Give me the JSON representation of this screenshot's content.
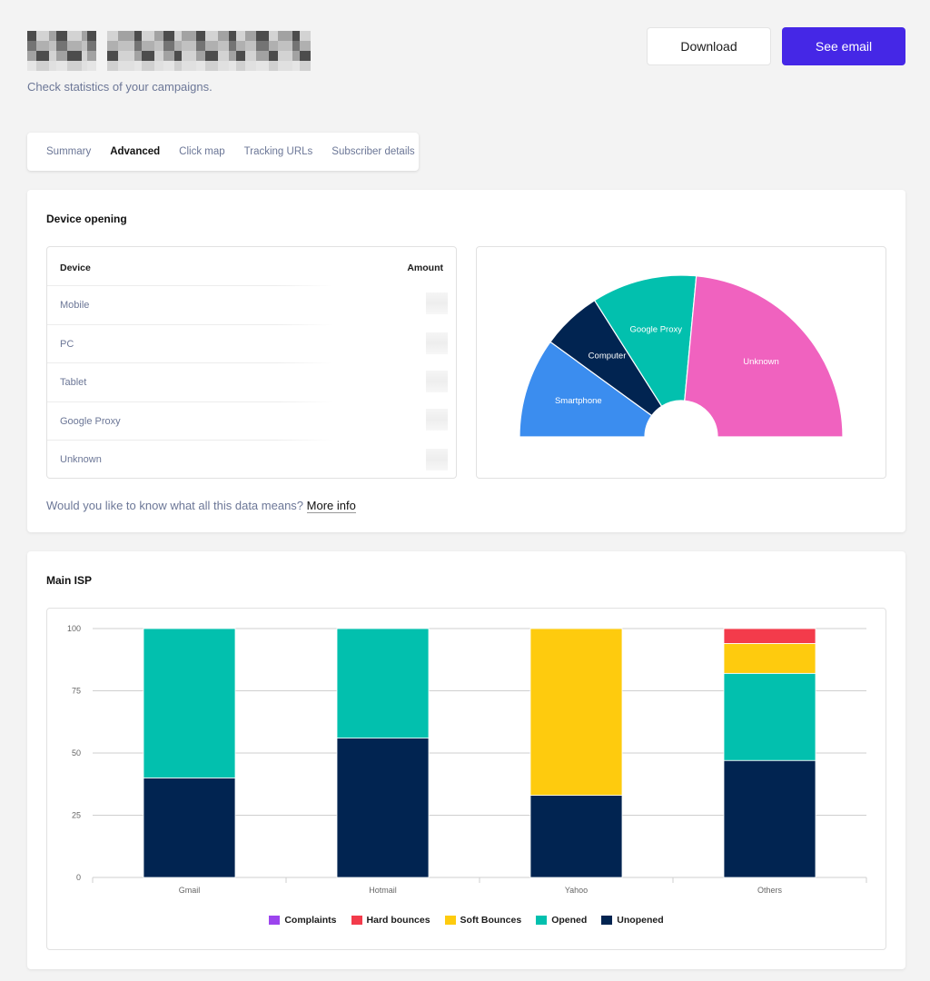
{
  "header": {
    "subtitle": "Check statistics of your campaigns.",
    "download_label": "Download",
    "see_email_label": "See email"
  },
  "tabs": [
    {
      "label": "Summary",
      "active": false
    },
    {
      "label": "Advanced",
      "active": true
    },
    {
      "label": "Click map",
      "active": false
    },
    {
      "label": "Tracking URLs",
      "active": false
    },
    {
      "label": "Subscriber details",
      "active": false
    }
  ],
  "device_opening": {
    "title": "Device opening",
    "col_device": "Device",
    "col_amount": "Amount",
    "rows": [
      "Mobile",
      "PC",
      "Tablet",
      "Google Proxy",
      "Unknown"
    ],
    "more_text": "Would you like to know what all this data means?",
    "more_link": "More info"
  },
  "main_isp": {
    "title": "Main ISP"
  },
  "chart_data": [
    {
      "type": "pie",
      "subtype": "semi-donut",
      "labels": [
        "Smartphone",
        "Computer",
        "Google Proxy",
        "Unknown"
      ],
      "values": [
        20,
        12,
        21,
        47
      ],
      "colors": [
        "#3b8def",
        "#012451",
        "#02c0ae",
        "#f062bf"
      ]
    },
    {
      "type": "bar",
      "stacked": true,
      "categories": [
        "Gmail",
        "Hotmail",
        "Yahoo",
        "Others"
      ],
      "ylim": [
        0,
        100
      ],
      "yticks": [
        0,
        25,
        50,
        75,
        100
      ],
      "series": [
        {
          "name": "Unopened",
          "color": "#012451",
          "values": [
            40,
            56,
            33,
            47
          ]
        },
        {
          "name": "Opened",
          "color": "#02c0ae",
          "values": [
            60,
            44,
            0,
            35
          ]
        },
        {
          "name": "Soft Bounces",
          "color": "#fecb0e",
          "values": [
            0,
            0,
            67,
            12
          ]
        },
        {
          "name": "Hard bounces",
          "color": "#f33b4b",
          "values": [
            0,
            0,
            0,
            6
          ]
        },
        {
          "name": "Complaints",
          "color": "#9c44ee",
          "values": [
            0,
            0,
            0,
            0
          ]
        }
      ],
      "legend_order": [
        "Complaints",
        "Hard bounces",
        "Soft Bounces",
        "Opened",
        "Unopened"
      ],
      "legend_position": "bottom",
      "grid": true
    }
  ]
}
